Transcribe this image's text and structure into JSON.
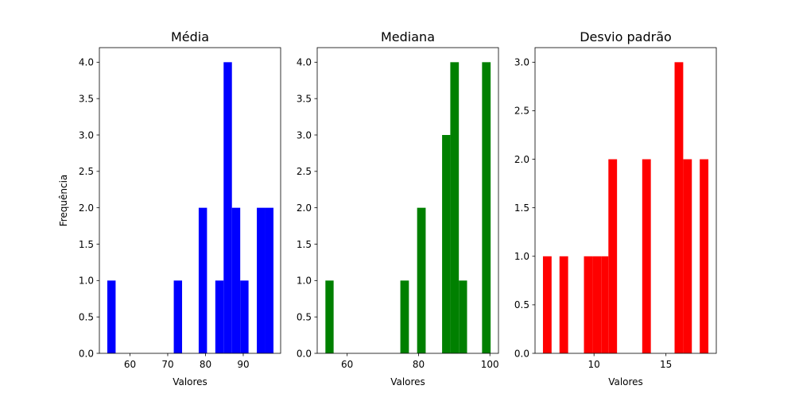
{
  "chart_data": [
    {
      "type": "bar",
      "title": "Média",
      "xlabel": "Valores",
      "ylabel": "Frequência",
      "color": "#0000ff",
      "xlim": [
        51.9,
        99.9
      ],
      "ylim": [
        0,
        4.2
      ],
      "xticks": [
        60,
        70,
        80,
        90
      ],
      "yticks": [
        0.0,
        0.5,
        1.0,
        1.5,
        2.0,
        2.5,
        3.0,
        3.5,
        4.0
      ],
      "bins": [
        {
          "x0": 54.0,
          "x1": 56.2,
          "count": 1
        },
        {
          "x0": 71.6,
          "x1": 73.8,
          "count": 1
        },
        {
          "x0": 78.2,
          "x1": 80.4,
          "count": 2
        },
        {
          "x0": 82.6,
          "x1": 84.8,
          "count": 1
        },
        {
          "x0": 84.8,
          "x1": 87.0,
          "count": 4
        },
        {
          "x0": 87.0,
          "x1": 89.2,
          "count": 2
        },
        {
          "x0": 89.2,
          "x1": 91.4,
          "count": 1
        },
        {
          "x0": 93.6,
          "x1": 95.8,
          "count": 2
        },
        {
          "x0": 95.8,
          "x1": 98.0,
          "count": 2
        }
      ]
    },
    {
      "type": "bar",
      "title": "Mediana",
      "xlabel": "Valores",
      "ylabel": "",
      "color": "#008000",
      "xlim": [
        51.6,
        102.4
      ],
      "ylim": [
        0,
        4.2
      ],
      "xticks": [
        60,
        80,
        100
      ],
      "yticks": [
        0.0,
        0.5,
        1.0,
        1.5,
        2.0,
        2.5,
        3.0,
        3.5,
        4.0
      ],
      "bins": [
        {
          "x0": 53.9,
          "x1": 56.2,
          "count": 1
        },
        {
          "x0": 74.9,
          "x1": 77.3,
          "count": 1
        },
        {
          "x0": 79.6,
          "x1": 82.0,
          "count": 2
        },
        {
          "x0": 86.6,
          "x1": 88.9,
          "count": 3
        },
        {
          "x0": 88.9,
          "x1": 91.3,
          "count": 4
        },
        {
          "x0": 91.3,
          "x1": 93.6,
          "count": 1
        },
        {
          "x0": 97.8,
          "x1": 100.2,
          "count": 4
        }
      ]
    },
    {
      "type": "bar",
      "title": "Desvio padrão",
      "xlabel": "Valores",
      "ylabel": "",
      "color": "#ff0000",
      "xlim": [
        5.9,
        18.5
      ],
      "ylim": [
        0,
        3.15
      ],
      "xticks": [
        10,
        15
      ],
      "yticks": [
        0.0,
        0.5,
        1.0,
        1.5,
        2.0,
        2.5,
        3.0
      ],
      "bins": [
        {
          "x0": 6.45,
          "x1": 7.05,
          "count": 1
        },
        {
          "x0": 7.6,
          "x1": 8.2,
          "count": 1
        },
        {
          "x0": 9.3,
          "x1": 9.9,
          "count": 1
        },
        {
          "x0": 9.9,
          "x1": 10.5,
          "count": 1
        },
        {
          "x0": 10.5,
          "x1": 11.0,
          "count": 1
        },
        {
          "x0": 11.0,
          "x1": 11.6,
          "count": 2
        },
        {
          "x0": 13.35,
          "x1": 13.95,
          "count": 2
        },
        {
          "x0": 15.6,
          "x1": 16.2,
          "count": 3
        },
        {
          "x0": 16.2,
          "x1": 16.8,
          "count": 2
        },
        {
          "x0": 17.35,
          "x1": 17.95,
          "count": 2
        }
      ]
    }
  ]
}
